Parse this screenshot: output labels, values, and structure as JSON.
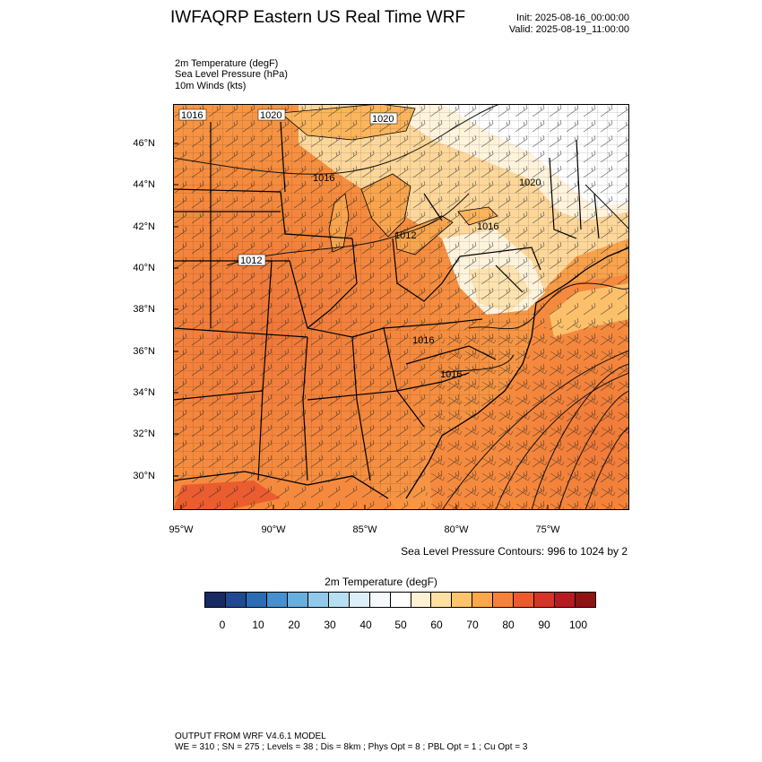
{
  "header": {
    "title": "IWFAQRP Eastern US Real Time WRF",
    "init": "Init: 2025-08-16_00:00:00",
    "valid": "Valid: 2025-08-19_11:00:00"
  },
  "fields": [
    "2m Temperature   (degF)",
    "Sea Level Pressure   (hPa)",
    "10m Winds   (kts)"
  ],
  "map": {
    "lat_labels": [
      "46°N",
      "44°N",
      "42°N",
      "40°N",
      "38°N",
      "36°N",
      "34°N",
      "32°N",
      "30°N"
    ],
    "lon_labels": [
      "95°W",
      "90°W",
      "85°W",
      "80°W",
      "75°W"
    ],
    "isobar_labels": [
      "1016",
      "1020",
      "1020",
      "1016",
      "1020",
      "1016",
      "1012",
      "1012",
      "1016",
      "1016"
    ],
    "contour_note": "Sea Level Pressure Contours: 996 to 1024 by 2"
  },
  "colorbar": {
    "title": "2m Temperature  (degF)",
    "colors": [
      "#172a63",
      "#1f4a91",
      "#2b6cb5",
      "#4790cd",
      "#6aaedd",
      "#91c9ea",
      "#b7dff2",
      "#dceff9",
      "#f6f9fb",
      "#ffffff",
      "#fff2d4",
      "#fee0a2",
      "#fdc46b",
      "#fba84b",
      "#f6823a",
      "#ec5a2d",
      "#d63426",
      "#b81a21",
      "#8f1215"
    ],
    "ticks": [
      "0",
      "10",
      "20",
      "30",
      "40",
      "50",
      "60",
      "70",
      "80",
      "90",
      "100"
    ]
  },
  "footer": {
    "line1": "OUTPUT FROM WRF V4.6.1 MODEL",
    "line2": "WE = 310 ; SN = 275 ; Levels = 38 ; Dis = 8km ; Phys Opt = 8 ; PBL Opt = 1 ; Cu Opt = 3"
  }
}
